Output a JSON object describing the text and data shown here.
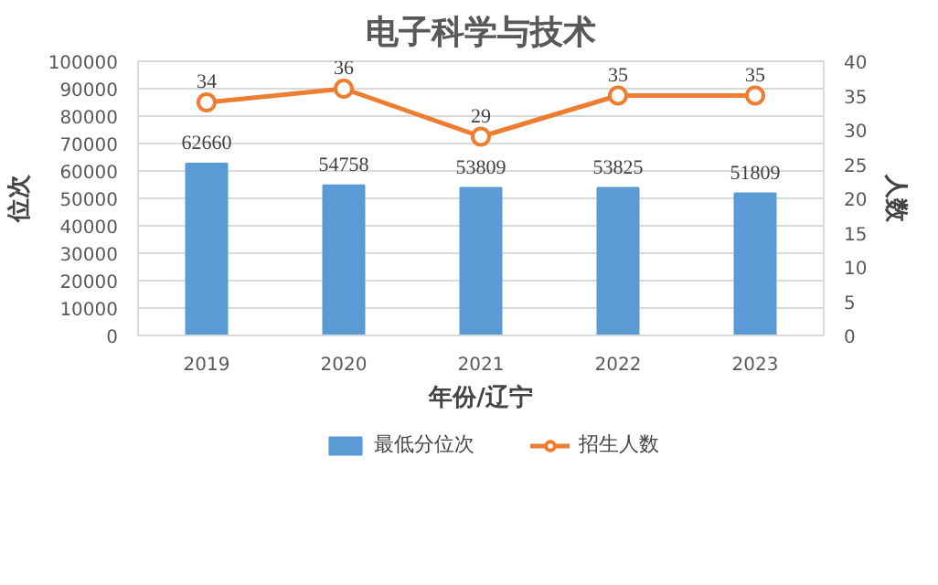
{
  "chart_data": {
    "type": "bar",
    "title": "电子科学与技术",
    "xlabel": "年份/辽宁",
    "ylabel": "位次",
    "y2label": "人数",
    "categories": [
      "2019",
      "2020",
      "2021",
      "2022",
      "2023"
    ],
    "series": [
      {
        "name": "最低分位次",
        "color": "#5b9bd5",
        "values": [
          62660,
          54758,
          53809,
          53825,
          51809
        ]
      },
      {
        "name": "招生人数",
        "type": "line",
        "axis": "y2",
        "color": "#ed7d31",
        "marker": "circle",
        "values": [
          34,
          36,
          29,
          35,
          35
        ]
      }
    ],
    "ylim": [
      0,
      100000
    ],
    "yticks": [
      0,
      10000,
      20000,
      30000,
      40000,
      50000,
      60000,
      70000,
      80000,
      90000,
      100000
    ],
    "y2lim": [
      0,
      40
    ],
    "y2ticks": [
      0,
      5,
      10,
      15,
      20,
      25,
      30,
      35,
      40
    ],
    "grid": "y",
    "legend": "bottom",
    "data_labels": true
  }
}
